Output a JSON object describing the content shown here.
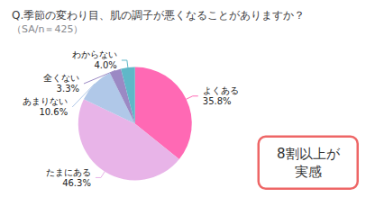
{
  "chart_data": {
    "type": "pie",
    "title": "Q.季節の変わり目、肌の調子が悪くなることがありますか？",
    "subtitle": "（SA/n＝425）",
    "categories": [
      "よくある",
      "たまにある",
      "あまりない",
      "全くない",
      "わからない"
    ],
    "values": [
      35.8,
      46.3,
      10.6,
      3.3,
      4.0
    ],
    "value_labels": [
      "35.8%",
      "46.3%",
      "10.6%",
      "3.3%",
      "4.0%"
    ],
    "data_labels": true,
    "colors": [
      "#FF69B4",
      "#E8B4E8",
      "#B0C8E8",
      "#9B89C4",
      "#5FB8C8"
    ],
    "annotations": [
      "8割以上が\n実感"
    ],
    "legend": false
  }
}
